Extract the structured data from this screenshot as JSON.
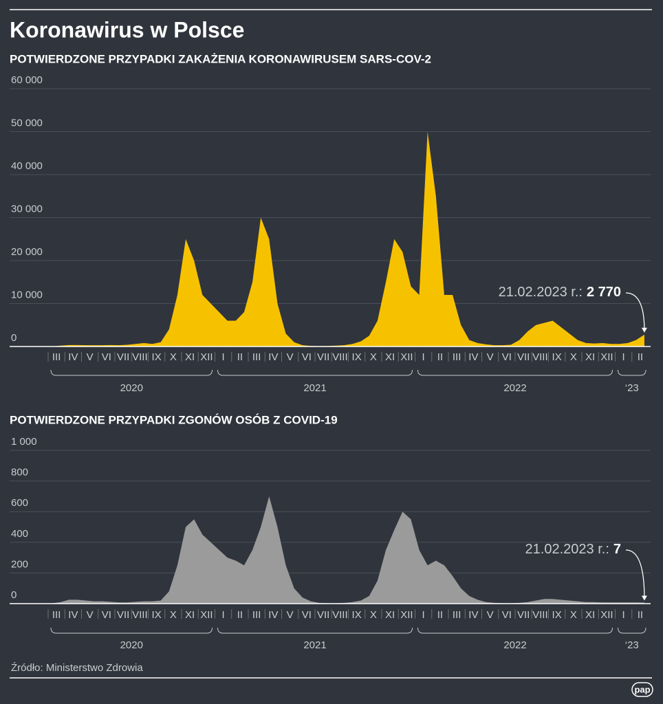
{
  "title": "Koronawirus w Polsce",
  "source": "Źródło: Ministerstwo Zdrowia",
  "logo": "pap",
  "chart_data": [
    {
      "type": "area",
      "title": "POTWIERDZONE PRZYPADKI ZAKAŻENIA KORONAWIRUSEM SARS-COV-2",
      "color": "#f6c200",
      "grid": true,
      "ylim": [
        0,
        60000
      ],
      "yticks": [
        0,
        {
          "value": 10000,
          "label": "10 000"
        },
        {
          "value": 20000,
          "label": "20 000"
        },
        {
          "value": 30000,
          "label": "30 000"
        },
        {
          "value": 40000,
          "label": "40 000"
        },
        {
          "value": 50000,
          "label": "50 000"
        },
        {
          "value": 60000,
          "label": "60 000"
        }
      ],
      "categories": [
        "III",
        null,
        "IV",
        null,
        "V",
        null,
        "VI",
        null,
        "VII",
        null,
        "VIII",
        null,
        "IX",
        null,
        "X",
        null,
        "XI",
        null,
        "XII",
        null,
        "I",
        null,
        "II",
        null,
        "III",
        null,
        "IV",
        null,
        "V",
        null,
        "VI",
        null,
        "VII",
        null,
        "VIII",
        null,
        "IX",
        null,
        "X",
        null,
        "XI",
        null,
        "XII",
        null,
        "I",
        null,
        "II",
        null,
        "III",
        null,
        "IV",
        null,
        "V",
        null,
        "VI",
        null,
        "VII",
        null,
        "VIII",
        null,
        "IX",
        null,
        "X",
        null,
        "XI",
        null,
        "XII",
        null,
        "I",
        null,
        "II",
        null
      ],
      "values": [
        50,
        200,
        350,
        350,
        300,
        300,
        300,
        350,
        300,
        400,
        600,
        800,
        600,
        1000,
        4000,
        12000,
        25000,
        20000,
        12000,
        10000,
        8000,
        6000,
        6000,
        8000,
        15000,
        30000,
        25000,
        10000,
        3000,
        1000,
        300,
        150,
        100,
        120,
        200,
        300,
        600,
        1200,
        2500,
        6000,
        15000,
        25000,
        22000,
        14000,
        12000,
        50000,
        35000,
        12000,
        12000,
        5000,
        1500,
        800,
        500,
        300,
        300,
        400,
        1500,
        3500,
        5000,
        5500,
        6000,
        4500,
        3000,
        1500,
        800,
        700,
        800,
        600,
        600,
        800,
        1500,
        2770
      ],
      "years": [
        {
          "label": "2020",
          "span": 20
        },
        {
          "label": "2021",
          "span": 24
        },
        {
          "label": "2022",
          "span": 24
        },
        {
          "label": "‘23",
          "span": 4
        }
      ],
      "annotation": {
        "text": "21.02.2023 r.:",
        "value": 2770,
        "value_label": "2 770"
      }
    },
    {
      "type": "area",
      "title": "POTWIERDZONE PRZYPADKI ZGONÓW OSÓB Z COVID-19",
      "color": "#9b9b9b",
      "grid": true,
      "ylim": [
        0,
        1000
      ],
      "yticks": [
        0,
        200,
        400,
        600,
        800,
        {
          "value": 1000,
          "label": "1 000"
        }
      ],
      "categories": [
        "III",
        null,
        "IV",
        null,
        "V",
        null,
        "VI",
        null,
        "VII",
        null,
        "VIII",
        null,
        "IX",
        null,
        "X",
        null,
        "XI",
        null,
        "XII",
        null,
        "I",
        null,
        "II",
        null,
        "III",
        null,
        "IV",
        null,
        "V",
        null,
        "VI",
        null,
        "VII",
        null,
        "VIII",
        null,
        "IX",
        null,
        "X",
        null,
        "XI",
        null,
        "XII",
        null,
        "I",
        null,
        "II",
        null,
        "III",
        null,
        "IV",
        null,
        "V",
        null,
        "VI",
        null,
        "VII",
        null,
        "VIII",
        null,
        "IX",
        null,
        "X",
        null,
        "XI",
        null,
        "XII",
        null,
        "I",
        null,
        "II",
        null
      ],
      "values": [
        2,
        10,
        25,
        25,
        20,
        15,
        15,
        12,
        8,
        8,
        12,
        15,
        15,
        20,
        80,
        250,
        500,
        550,
        450,
        400,
        350,
        300,
        280,
        250,
        350,
        500,
        700,
        500,
        250,
        100,
        40,
        15,
        5,
        3,
        3,
        5,
        10,
        20,
        50,
        150,
        350,
        480,
        600,
        550,
        350,
        250,
        280,
        250,
        180,
        100,
        50,
        25,
        10,
        5,
        3,
        3,
        5,
        10,
        20,
        30,
        30,
        25,
        20,
        15,
        10,
        10,
        8,
        8,
        8,
        8,
        8,
        7
      ],
      "years": [
        {
          "label": "2020",
          "span": 20
        },
        {
          "label": "2021",
          "span": 24
        },
        {
          "label": "2022",
          "span": 24
        },
        {
          "label": "‘23",
          "span": 4
        }
      ],
      "annotation": {
        "text": "21.02.2023 r.:",
        "value": 7,
        "value_label": "7"
      }
    }
  ]
}
